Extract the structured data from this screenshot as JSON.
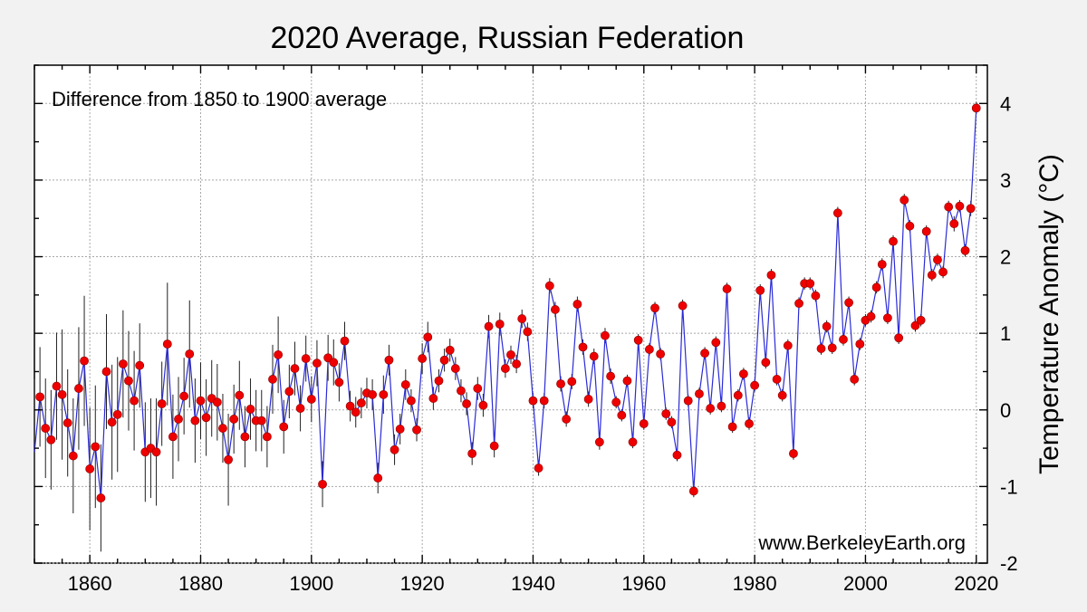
{
  "colors": {
    "background": "#f2f2f2",
    "plot_background": "#ffffff",
    "line": "#2b2bd6",
    "marker": "#ee0000",
    "error_bar": "#202020",
    "grid": "#a8a8a8"
  },
  "chart_data": {
    "type": "line",
    "title": "2020 Average, Russian Federation",
    "annotation": "Difference from 1850 to 1900 average",
    "source": "www.BerkeleyEarth.org",
    "xlabel": "",
    "ylabel": "Temperature Anomaly (°C)",
    "ylabel_position": "right",
    "xlim": [
      1850,
      2022
    ],
    "ylim": [
      -2,
      4.5
    ],
    "x_ticks": [
      1860,
      1880,
      1900,
      1920,
      1940,
      1960,
      1980,
      2000,
      2020
    ],
    "x_tick_labels": [
      "1860",
      "1880",
      "1900",
      "1920",
      "1940",
      "1960",
      "1980",
      "2000",
      "2020"
    ],
    "y_ticks": [
      -2,
      -1,
      0,
      1,
      2,
      3,
      4
    ],
    "y_tick_labels": [
      "-2",
      "-1",
      "0",
      "1",
      "2",
      "3",
      "4"
    ],
    "grid": true,
    "series": [
      {
        "x_start": 1850,
        "values": [
          -0.55,
          0.17,
          -0.24,
          -0.39,
          0.31,
          0.2,
          -0.17,
          -0.6,
          0.28,
          0.64,
          -0.77,
          -0.48,
          -1.15,
          0.5,
          -0.16,
          -0.06,
          0.6,
          0.38,
          0.12,
          0.58,
          -0.55,
          -0.5,
          -0.55,
          0.08,
          0.86,
          -0.35,
          -0.12,
          0.18,
          0.73,
          -0.14,
          0.12,
          -0.1,
          0.15,
          0.1,
          -0.24,
          -0.65,
          -0.12,
          0.19,
          -0.35,
          0.01,
          -0.14,
          -0.14,
          -0.35,
          0.4,
          0.72,
          -0.22,
          0.24,
          0.54,
          0.02,
          0.67,
          0.14,
          0.61,
          -0.97,
          0.68,
          0.62,
          0.36,
          0.9,
          0.05,
          -0.03,
          0.09,
          0.22,
          0.2,
          -0.89,
          0.2,
          0.65,
          -0.52,
          -0.25,
          0.33,
          0.12,
          -0.26,
          0.67,
          0.95,
          0.15,
          0.38,
          0.65,
          0.78,
          0.54,
          0.25,
          0.08,
          -0.57,
          0.28,
          0.06,
          1.09,
          -0.47,
          1.12,
          0.54,
          0.72,
          0.6,
          1.19,
          1.02,
          0.12,
          -0.76,
          0.12,
          1.62,
          1.31,
          0.34,
          -0.12,
          0.37,
          1.38,
          0.82,
          0.14,
          0.7,
          -0.42,
          0.97,
          0.44,
          0.1,
          -0.07,
          0.38,
          -0.42,
          0.91,
          -0.18,
          0.79,
          1.33,
          0.73,
          -0.05,
          -0.16,
          -0.59,
          1.36,
          0.12,
          -1.06,
          0.21,
          0.74,
          0.02,
          0.88,
          0.05,
          1.58,
          -0.22,
          0.19,
          0.47,
          -0.18,
          0.32,
          1.56,
          0.62,
          1.76,
          0.4,
          0.19,
          0.84,
          -0.57,
          1.39,
          1.65,
          1.65,
          1.49,
          0.8,
          1.09,
          0.81,
          2.57,
          0.92,
          1.4,
          0.4,
          0.86,
          1.17,
          1.22,
          1.6,
          1.9,
          1.2,
          2.2,
          0.94,
          2.74,
          2.4,
          1.1,
          1.17,
          2.33,
          1.76,
          1.96,
          1.8,
          2.65,
          2.43,
          2.66,
          2.08,
          2.63,
          3.94
        ],
        "uncertainty": [
          0.95,
          0.65,
          0.65,
          0.65,
          0.7,
          0.85,
          0.7,
          0.75,
          0.8,
          0.85,
          0.8,
          0.8,
          0.7,
          0.75,
          0.75,
          0.75,
          0.7,
          0.65,
          0.65,
          0.55,
          0.65,
          0.65,
          0.7,
          0.55,
          0.8,
          0.55,
          0.55,
          0.5,
          0.7,
          0.55,
          0.5,
          0.5,
          0.5,
          0.5,
          0.45,
          0.6,
          0.45,
          0.45,
          0.4,
          0.4,
          0.4,
          0.4,
          0.4,
          0.45,
          0.5,
          0.35,
          0.35,
          0.35,
          0.3,
          0.3,
          0.3,
          0.3,
          0.3,
          0.3,
          0.3,
          0.25,
          0.25,
          0.2,
          0.2,
          0.2,
          0.2,
          0.2,
          0.2,
          0.25,
          0.2,
          0.2,
          0.2,
          0.2,
          0.15,
          0.15,
          0.2,
          0.2,
          0.15,
          0.15,
          0.15,
          0.15,
          0.15,
          0.15,
          0.15,
          0.15,
          0.15,
          0.15,
          0.15,
          0.15,
          0.15,
          0.12,
          0.12,
          0.12,
          0.12,
          0.12,
          0.1,
          0.1,
          0.1,
          0.1,
          0.1,
          0.1,
          0.1,
          0.1,
          0.1,
          0.1,
          0.1,
          0.1,
          0.1,
          0.1,
          0.1,
          0.08,
          0.08,
          0.08,
          0.08,
          0.08,
          0.08,
          0.08,
          0.08,
          0.08,
          0.08,
          0.08,
          0.08,
          0.08,
          0.08,
          0.08,
          0.08,
          0.08,
          0.08,
          0.08,
          0.08,
          0.08,
          0.08,
          0.08,
          0.08,
          0.08,
          0.08,
          0.08,
          0.08,
          0.08,
          0.08,
          0.08,
          0.08,
          0.08,
          0.08,
          0.08,
          0.08,
          0.08,
          0.08,
          0.08,
          0.08,
          0.08,
          0.08,
          0.08,
          0.08,
          0.08,
          0.08,
          0.08,
          0.08,
          0.08,
          0.08,
          0.08,
          0.08,
          0.08,
          0.08,
          0.08,
          0.08,
          0.08,
          0.08,
          0.08,
          0.08,
          0.08,
          0.1,
          0.08,
          0.08,
          0.1,
          0.08,
          0.1,
          0.1,
          0.08
        ]
      }
    ]
  }
}
